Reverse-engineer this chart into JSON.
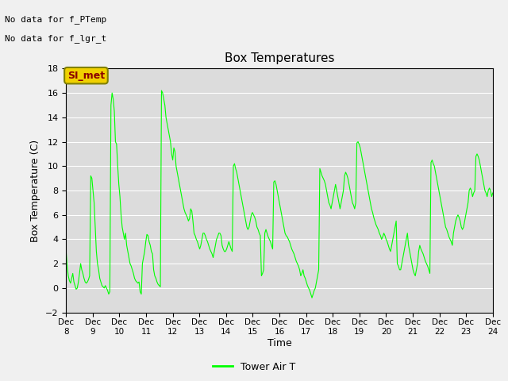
{
  "title": "Box Temperatures",
  "ylabel": "Box Temperature (C)",
  "xlabel": "Time",
  "ylim": [
    -2,
    18
  ],
  "xlim": [
    0,
    16
  ],
  "yticks": [
    -2,
    0,
    2,
    4,
    6,
    8,
    10,
    12,
    14,
    16,
    18
  ],
  "xtick_labels": [
    "Dec 8",
    "Dec 9",
    "Dec 10",
    "Dec 11",
    "Dec 12",
    "Dec 13",
    "Dec 14",
    "Dec 15",
    "Dec 16",
    "Dec 17",
    "Dec 18",
    "Dec 19",
    "Dec 20",
    "Dec 21",
    "Dec 22",
    "Dec 23",
    "Dec 24"
  ],
  "no_data_texts": [
    "No data for f_PTemp",
    "No data for f_lgr_t"
  ],
  "si_met_label": "SI_met",
  "legend_label": "Tower Air T",
  "line_color": "#00ff00",
  "fig_facecolor": "#f0f0f0",
  "plot_bg_color": "#dcdcdc",
  "grid_color": "#ffffff",
  "tower_air_t": [
    3.1,
    1.8,
    1.0,
    0.6,
    0.4,
    0.8,
    1.2,
    0.5,
    0.2,
    -0.1,
    0.0,
    0.5,
    1.2,
    2.0,
    1.5,
    1.2,
    0.8,
    0.5,
    0.4,
    0.5,
    0.7,
    1.0,
    9.2,
    9.0,
    8.0,
    7.0,
    5.0,
    3.0,
    2.0,
    1.5,
    0.8,
    0.5,
    0.2,
    0.1,
    0.0,
    0.2,
    0.0,
    -0.2,
    -0.5,
    -0.3,
    15.0,
    16.0,
    15.5,
    14.5,
    12.0,
    11.8,
    10.0,
    8.5,
    7.5,
    6.0,
    5.0,
    4.5,
    4.0,
    4.5,
    3.5,
    3.0,
    2.5,
    2.0,
    1.8,
    1.5,
    1.2,
    0.8,
    0.6,
    0.5,
    0.4,
    0.5,
    -0.3,
    -0.5,
    2.0,
    2.5,
    3.0,
    3.8,
    4.4,
    4.3,
    3.8,
    3.5,
    3.0,
    2.8,
    1.5,
    1.0,
    0.8,
    0.5,
    0.3,
    0.2,
    0.1,
    16.2,
    16.0,
    15.5,
    15.0,
    14.0,
    13.5,
    13.0,
    12.5,
    12.0,
    11.0,
    10.5,
    11.5,
    11.2,
    10.0,
    9.5,
    9.0,
    8.5,
    8.0,
    7.5,
    7.0,
    6.5,
    6.2,
    6.0,
    5.8,
    5.5,
    5.7,
    6.5,
    6.3,
    5.5,
    4.5,
    4.3,
    4.0,
    3.8,
    3.5,
    3.2,
    3.5,
    4.0,
    4.5,
    4.5,
    4.3,
    4.0,
    3.8,
    3.5,
    3.2,
    3.0,
    2.8,
    2.5,
    3.0,
    3.5,
    4.0,
    4.2,
    4.5,
    4.5,
    4.3,
    3.5,
    3.2,
    3.0,
    3.0,
    3.2,
    3.5,
    3.8,
    3.5,
    3.2,
    3.0,
    10.0,
    10.2,
    9.8,
    9.5,
    9.0,
    8.5,
    8.0,
    7.5,
    7.0,
    6.5,
    6.0,
    5.5,
    5.0,
    4.8,
    5.0,
    5.5,
    6.0,
    6.2,
    6.0,
    5.8,
    5.5,
    5.0,
    4.8,
    4.5,
    4.3,
    1.0,
    1.2,
    1.5,
    4.5,
    4.8,
    4.5,
    4.2,
    4.0,
    3.8,
    3.5,
    3.2,
    8.7,
    8.8,
    8.5,
    8.0,
    7.5,
    7.0,
    6.5,
    6.0,
    5.5,
    5.0,
    4.5,
    4.3,
    4.2,
    4.0,
    3.8,
    3.5,
    3.2,
    3.0,
    2.8,
    2.5,
    2.2,
    2.0,
    1.8,
    1.5,
    1.0,
    1.2,
    1.5,
    1.0,
    0.8,
    0.5,
    0.2,
    0.0,
    -0.2,
    -0.5,
    -0.8,
    -0.5,
    -0.2,
    0.0,
    0.5,
    1.0,
    1.5,
    9.8,
    9.5,
    9.2,
    9.0,
    8.8,
    8.5,
    8.0,
    7.5,
    7.0,
    6.8,
    6.5,
    7.0,
    7.5,
    8.0,
    8.5,
    8.0,
    7.5,
    7.0,
    6.5,
    7.0,
    7.5,
    8.0,
    9.2,
    9.5,
    9.3,
    9.0,
    8.5,
    8.0,
    7.5,
    7.0,
    6.8,
    6.5,
    7.0,
    11.9,
    12.0,
    11.8,
    11.5,
    11.0,
    10.5,
    10.0,
    9.5,
    9.0,
    8.5,
    8.0,
    7.5,
    7.0,
    6.5,
    6.2,
    5.8,
    5.5,
    5.2,
    5.0,
    4.8,
    4.5,
    4.3,
    4.0,
    4.2,
    4.5,
    4.3,
    4.0,
    3.8,
    3.5,
    3.2,
    3.0,
    3.5,
    4.0,
    4.5,
    5.0,
    5.5,
    2.0,
    1.8,
    1.5,
    1.5,
    2.0,
    2.5,
    3.0,
    3.5,
    4.0,
    4.5,
    3.5,
    3.0,
    2.5,
    2.0,
    1.5,
    1.2,
    1.0,
    1.5,
    2.0,
    3.0,
    3.5,
    3.2,
    3.0,
    2.8,
    2.5,
    2.2,
    2.0,
    1.8,
    1.5,
    1.2,
    10.3,
    10.5,
    10.2,
    10.0,
    9.5,
    9.0,
    8.5,
    8.0,
    7.5,
    7.0,
    6.5,
    6.0,
    5.5,
    5.0,
    4.8,
    4.5,
    4.2,
    4.0,
    3.8,
    3.5,
    4.5,
    5.0,
    5.5,
    5.8,
    6.0,
    5.8,
    5.5,
    5.0,
    4.8,
    5.0,
    5.5,
    6.0,
    6.5,
    7.0,
    8.0,
    8.2,
    8.0,
    7.5,
    7.8,
    8.0,
    10.8,
    11.0,
    10.8,
    10.5,
    10.0,
    9.5,
    9.0,
    8.5,
    8.0,
    7.8,
    7.5,
    8.0,
    8.2,
    8.0,
    7.5,
    7.8
  ]
}
